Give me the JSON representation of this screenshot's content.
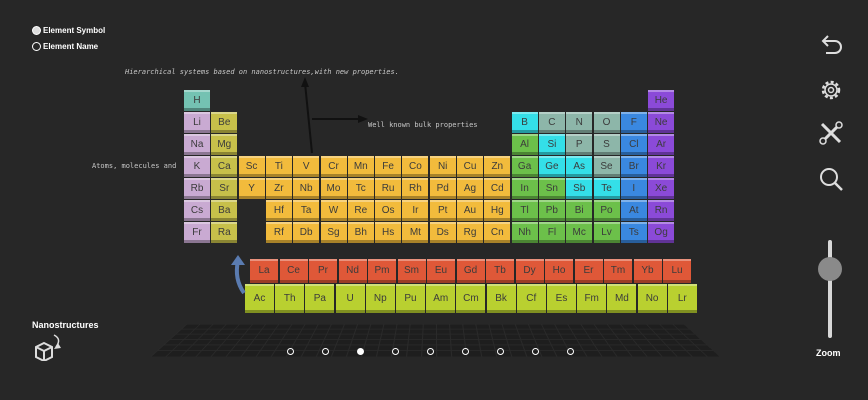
{
  "display_options": [
    {
      "label": "Element Symbol",
      "selected": true
    },
    {
      "label": "Element Name",
      "selected": false
    }
  ],
  "annotations": {
    "top": "Hierarchical systems based on nanostructures,with new properties.",
    "right": "Well known bulk properties",
    "left": "Atoms, molecules and"
  },
  "category_colors": {
    "h": "#74c2b2",
    "alk": "#c9aad2",
    "ae": "#c7c04a",
    "tm": "#f2bb3c",
    "pt": "#6cc04a",
    "md": "#34dfe8",
    "nm": "#8db6a9",
    "hal": "#3a88e0",
    "ng": "#8b4ad8",
    "la": "#df5838",
    "ac": "#b9d030"
  },
  "table_rows": [
    [
      [
        "H",
        "h"
      ],
      null,
      null,
      null,
      null,
      null,
      null,
      null,
      null,
      null,
      null,
      null,
      null,
      null,
      null,
      null,
      null,
      [
        "He",
        "ng"
      ]
    ],
    [
      [
        "Li",
        "alk"
      ],
      [
        "Be",
        "ae"
      ],
      null,
      null,
      null,
      null,
      null,
      null,
      null,
      null,
      null,
      null,
      [
        "B",
        "md"
      ],
      [
        "C",
        "nm"
      ],
      [
        "N",
        "nm"
      ],
      [
        "O",
        "nm"
      ],
      [
        "F",
        "hal"
      ],
      [
        "Ne",
        "ng"
      ]
    ],
    [
      [
        "Na",
        "alk"
      ],
      [
        "Mg",
        "ae"
      ],
      null,
      null,
      null,
      null,
      null,
      null,
      null,
      null,
      null,
      null,
      [
        "Al",
        "pt"
      ],
      [
        "Si",
        "md"
      ],
      [
        "P",
        "nm"
      ],
      [
        "S",
        "nm"
      ],
      [
        "Cl",
        "hal"
      ],
      [
        "Ar",
        "ng"
      ]
    ],
    [
      [
        "K",
        "alk"
      ],
      [
        "Ca",
        "ae"
      ],
      [
        "Sc",
        "tm"
      ],
      [
        "Ti",
        "tm"
      ],
      [
        "V",
        "tm"
      ],
      [
        "Cr",
        "tm"
      ],
      [
        "Mn",
        "tm"
      ],
      [
        "Fe",
        "tm"
      ],
      [
        "Co",
        "tm"
      ],
      [
        "Ni",
        "tm"
      ],
      [
        "Cu",
        "tm"
      ],
      [
        "Zn",
        "tm"
      ],
      [
        "Ga",
        "pt"
      ],
      [
        "Ge",
        "md"
      ],
      [
        "As",
        "md"
      ],
      [
        "Se",
        "nm"
      ],
      [
        "Br",
        "hal"
      ],
      [
        "Kr",
        "ng"
      ]
    ],
    [
      [
        "Rb",
        "alk"
      ],
      [
        "Sr",
        "ae"
      ],
      [
        "Y",
        "tm"
      ],
      [
        "Zr",
        "tm"
      ],
      [
        "Nb",
        "tm"
      ],
      [
        "Mo",
        "tm"
      ],
      [
        "Tc",
        "tm"
      ],
      [
        "Ru",
        "tm"
      ],
      [
        "Rh",
        "tm"
      ],
      [
        "Pd",
        "tm"
      ],
      [
        "Ag",
        "tm"
      ],
      [
        "Cd",
        "tm"
      ],
      [
        "In",
        "pt"
      ],
      [
        "Sn",
        "pt"
      ],
      [
        "Sb",
        "md"
      ],
      [
        "Te",
        "md"
      ],
      [
        "I",
        "hal"
      ],
      [
        "Xe",
        "ng"
      ]
    ],
    [
      [
        "Cs",
        "alk"
      ],
      [
        "Ba",
        "ae"
      ],
      null,
      [
        "Hf",
        "tm"
      ],
      [
        "Ta",
        "tm"
      ],
      [
        "W",
        "tm"
      ],
      [
        "Re",
        "tm"
      ],
      [
        "Os",
        "tm"
      ],
      [
        "Ir",
        "tm"
      ],
      [
        "Pt",
        "tm"
      ],
      [
        "Au",
        "tm"
      ],
      [
        "Hg",
        "tm"
      ],
      [
        "Tl",
        "pt"
      ],
      [
        "Pb",
        "pt"
      ],
      [
        "Bi",
        "pt"
      ],
      [
        "Po",
        "pt"
      ],
      [
        "At",
        "hal"
      ],
      [
        "Rn",
        "ng"
      ]
    ],
    [
      [
        "Fr",
        "alk"
      ],
      [
        "Ra",
        "ae"
      ],
      null,
      [
        "Rf",
        "tm"
      ],
      [
        "Db",
        "tm"
      ],
      [
        "Sg",
        "tm"
      ],
      [
        "Bh",
        "tm"
      ],
      [
        "Hs",
        "tm"
      ],
      [
        "Mt",
        "tm"
      ],
      [
        "Ds",
        "tm"
      ],
      [
        "Rg",
        "tm"
      ],
      [
        "Cn",
        "tm"
      ],
      [
        "Nh",
        "pt"
      ],
      [
        "Fl",
        "pt"
      ],
      [
        "Mc",
        "pt"
      ],
      [
        "Lv",
        "pt"
      ],
      [
        "Ts",
        "hal"
      ],
      [
        "Og",
        "ng"
      ]
    ]
  ],
  "lanthanides": [
    "La",
    "Ce",
    "Pr",
    "Nd",
    "Pm",
    "Sm",
    "Eu",
    "Gd",
    "Tb",
    "Dy",
    "Ho",
    "Er",
    "Tm",
    "Yb",
    "Lu"
  ],
  "actinides": [
    "Ac",
    "Th",
    "Pa",
    "U",
    "Np",
    "Pu",
    "Am",
    "Cm",
    "Bk",
    "Cf",
    "Es",
    "Fm",
    "Md",
    "No",
    "Lr"
  ],
  "toolbar": {
    "icons": [
      "back-icon",
      "settings-icon",
      "tools-icon",
      "search-icon"
    ]
  },
  "zoom": {
    "label": "Zoom",
    "value": 0.7
  },
  "mode": {
    "label": "Nanostructures"
  },
  "pagination": {
    "count": 9,
    "active": 3
  }
}
